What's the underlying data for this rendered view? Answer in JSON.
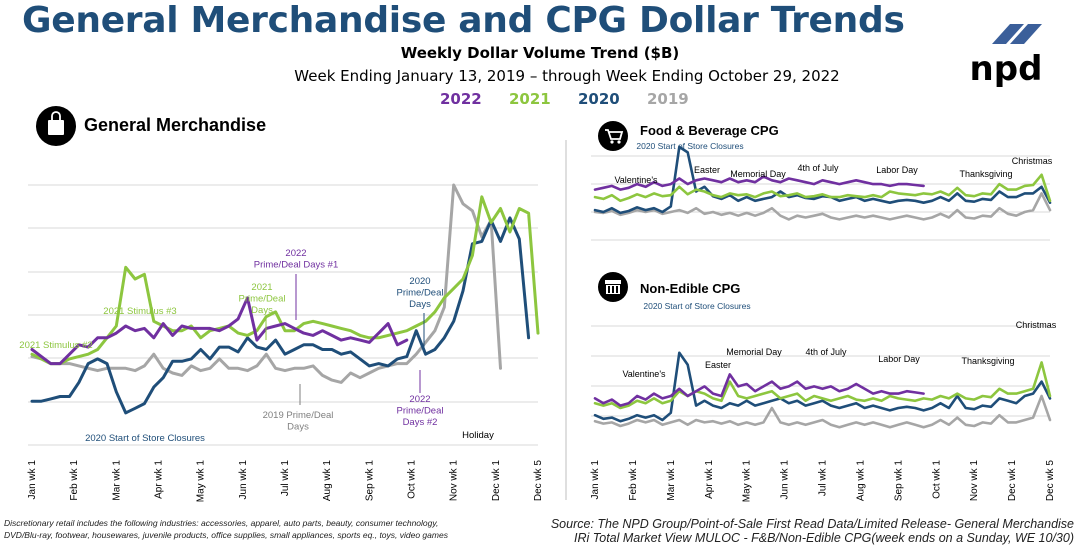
{
  "header": {
    "title": "General Merchandise and CPG Dollar Trends",
    "subtitle": "Weekly Dollar Volume Trend ($B)",
    "date_range": "Week Ending January 13, 2019 – through Week Ending October 29, 2022"
  },
  "logo": {
    "text": "npd"
  },
  "legend": [
    {
      "label": "2022",
      "color": "#7030a0"
    },
    {
      "label": "2021",
      "color": "#8dc63f"
    },
    {
      "label": "2020",
      "color": "#1f4e79"
    },
    {
      "label": "2019",
      "color": "#a6a6a6"
    }
  ],
  "colors": {
    "2022": "#7030a0",
    "2021": "#8dc63f",
    "2020": "#1f4e79",
    "2019": "#a6a6a6",
    "title": "#1f4e79"
  },
  "footnotes": {
    "left": [
      "Discretionary retail includes the following industries: accessories, apparel, auto parts, beauty, consumer technology,",
      "DVD/Blu-ray, footwear, housewares, juvenile products, office supplies, small appliances, sports eq., toys, video games"
    ],
    "right": [
      "Source: The NPD Group/Point-of-Sale First Read Data/Limited Release- General Merchandise",
      "IRi Total Market View MULOC - F&B/Non-Edible CPG(week ends on a Sunday, WE 10/30)"
    ]
  },
  "chart_data": [
    {
      "type": "line",
      "title": "General Merchandise",
      "icon": "shopping-bag-icon",
      "grid": true,
      "ylim": [
        0,
        100
      ],
      "x_ticks": [
        "Jan wk 1",
        "Feb wk 1",
        "Mar wk 1",
        "Apr wk 1",
        "May wk 1",
        "Jun wk 1",
        "Jul wk 1",
        "Aug wk 1",
        "Sep wk 1",
        "Oct wk 1",
        "Nov wk 1",
        "Dec wk 1",
        "Dec wk 5"
      ],
      "series": [
        {
          "name": "2022",
          "values": [
            30,
            27,
            24,
            24,
            28,
            32,
            31,
            35,
            35,
            37,
            40,
            38,
            39,
            35,
            41,
            36,
            40,
            39,
            39,
            39,
            38,
            40,
            43,
            52,
            34,
            39,
            40,
            41,
            39,
            37,
            36,
            38,
            36,
            34,
            35,
            34,
            33,
            37,
            41,
            32,
            34
          ]
        },
        {
          "name": "2021",
          "values": [
            28,
            26,
            24,
            24,
            26,
            27,
            28,
            30,
            35,
            40,
            65,
            60,
            62,
            42,
            40,
            38,
            38,
            40,
            35,
            38,
            39,
            40,
            37,
            36,
            38,
            44,
            46,
            38,
            38,
            41,
            42,
            41,
            40,
            39,
            38,
            36,
            35,
            35,
            36,
            37,
            38,
            40,
            42,
            46,
            52,
            56,
            60,
            70,
            95,
            84,
            90,
            80,
            90,
            88,
            37
          ]
        },
        {
          "name": "2020",
          "values": [
            8,
            8,
            9,
            10,
            10,
            16,
            24,
            26,
            24,
            12,
            3,
            5,
            7,
            14,
            18,
            25,
            25,
            26,
            30,
            26,
            31,
            31,
            29,
            35,
            31,
            30,
            34,
            28,
            30,
            32,
            32,
            30,
            30,
            28,
            29,
            26,
            23,
            24,
            23,
            26,
            27,
            38,
            28,
            30,
            35,
            42,
            55,
            75,
            76,
            85,
            76,
            86,
            77,
            35
          ]
        },
        {
          "name": "2019",
          "values": [
            27,
            26,
            24,
            24,
            24,
            23,
            22,
            21,
            22,
            22,
            22,
            21,
            23,
            28,
            22,
            20,
            19,
            23,
            21,
            22,
            26,
            22,
            22,
            21,
            23,
            28,
            22,
            21,
            22,
            22,
            23,
            19,
            17,
            16,
            20,
            18,
            20,
            22,
            23,
            24,
            24,
            28,
            33,
            38,
            48,
            100,
            92,
            89,
            78,
            85,
            22
          ]
        }
      ],
      "annotations": [
        "2021 Stimulus #2",
        "2021 Stimulus #3",
        "2021 Prime/Deal Days",
        "2022 Prime/Deal Days #1",
        "2020 Prime/Deal Days",
        "2019 Prime/Deal Days",
        "2022 Prime/Deal Days #2",
        "2020 Start of Store Closures",
        "Holiday"
      ]
    },
    {
      "type": "line",
      "title": "Food & Beverage CPG",
      "icon": "shopping-cart-icon",
      "grid": true,
      "ylim": [
        0,
        100
      ],
      "x_ticks": [
        "Jan wk 1",
        "Feb wk 1",
        "Mar wk 1",
        "Apr wk 1",
        "May wk 1",
        "Jun wk 1",
        "Jul wk 1",
        "Aug wk 1",
        "Sep wk 1",
        "Oct wk 1",
        "Nov wk 1",
        "Dec wk 1",
        "Dec wk 5"
      ],
      "series": [
        {
          "name": "2022",
          "values": [
            52,
            54,
            56,
            52,
            54,
            58,
            55,
            60,
            56,
            58,
            64,
            58,
            62,
            64,
            62,
            60,
            64,
            60,
            62,
            60,
            66,
            62,
            60,
            64,
            62,
            60,
            58,
            62,
            60,
            58,
            60,
            62,
            60,
            58,
            58,
            56,
            58,
            58,
            57,
            56
          ]
        },
        {
          "name": "2021",
          "values": [
            44,
            42,
            46,
            40,
            43,
            47,
            44,
            48,
            45,
            46,
            55,
            47,
            52,
            50,
            46,
            44,
            48,
            46,
            47,
            44,
            48,
            50,
            45,
            46,
            48,
            44,
            45,
            47,
            44,
            44,
            46,
            45,
            44,
            46,
            44,
            50,
            48,
            47,
            46,
            48,
            47,
            50,
            46,
            54,
            46,
            45,
            48,
            47,
            58,
            52,
            52,
            56,
            57,
            68,
            40
          ]
        },
        {
          "name": "2020",
          "values": [
            30,
            28,
            32,
            27,
            29,
            33,
            30,
            32,
            28,
            34,
            98,
            92,
            50,
            55,
            45,
            42,
            46,
            40,
            44,
            40,
            42,
            44,
            50,
            44,
            46,
            43,
            42,
            45,
            44,
            40,
            42,
            44,
            40,
            42,
            40,
            38,
            40,
            41,
            40,
            38,
            40,
            44,
            40,
            48,
            40,
            39,
            42,
            41,
            50,
            44,
            44,
            48,
            48,
            55,
            38
          ]
        },
        {
          "name": "2019",
          "values": [
            28,
            27,
            29,
            25,
            27,
            30,
            28,
            30,
            26,
            28,
            30,
            27,
            32,
            26,
            28,
            25,
            27,
            24,
            27,
            24,
            27,
            32,
            24,
            20,
            24,
            22,
            24,
            26,
            22,
            20,
            22,
            24,
            22,
            24,
            22,
            20,
            22,
            24,
            22,
            20,
            22,
            26,
            22,
            30,
            22,
            21,
            24,
            23,
            32,
            26,
            24,
            28,
            30,
            48,
            30
          ]
        }
      ],
      "annotations": [
        "2020 Start of Store Closures",
        "Valentine's",
        "Easter",
        "Memorial Day",
        "4th of July",
        "Labor Day",
        "Thanksgiving",
        "Christmas"
      ]
    },
    {
      "type": "line",
      "title": "Non-Edible CPG",
      "icon": "store-icon",
      "grid": true,
      "ylim": [
        0,
        100
      ],
      "x_ticks": [
        "Jan wk 1",
        "Feb wk 1",
        "Mar wk 1",
        "Apr wk 1",
        "May wk 1",
        "Jun wk 1",
        "Jul wk 1",
        "Aug wk 1",
        "Sep wk 1",
        "Oct wk 1",
        "Nov wk 1",
        "Dec wk 1",
        "Dec wk 5"
      ],
      "series": [
        {
          "name": "2022",
          "values": [
            28,
            24,
            27,
            22,
            24,
            30,
            27,
            32,
            28,
            30,
            36,
            30,
            34,
            38,
            32,
            30,
            48,
            38,
            40,
            34,
            38,
            42,
            36,
            38,
            42,
            36,
            38,
            36,
            38,
            34,
            36,
            40,
            36,
            32,
            34,
            32,
            32,
            34,
            33,
            32
          ]
        },
        {
          "name": "2021",
          "values": [
            24,
            22,
            24,
            20,
            22,
            26,
            24,
            28,
            24,
            26,
            34,
            30,
            34,
            32,
            28,
            26,
            42,
            30,
            28,
            30,
            32,
            34,
            28,
            30,
            32,
            26,
            30,
            28,
            26,
            28,
            30,
            27,
            26,
            28,
            26,
            30,
            28,
            27,
            26,
            28,
            27,
            30,
            28,
            32,
            28,
            27,
            30,
            29,
            36,
            32,
            32,
            34,
            36,
            58,
            30
          ]
        },
        {
          "name": "2020",
          "values": [
            14,
            11,
            12,
            9,
            11,
            14,
            12,
            14,
            10,
            16,
            66,
            56,
            22,
            26,
            22,
            20,
            24,
            22,
            26,
            22,
            24,
            26,
            28,
            24,
            26,
            22,
            24,
            26,
            22,
            20,
            22,
            24,
            20,
            22,
            20,
            18,
            20,
            21,
            20,
            18,
            20,
            24,
            20,
            30,
            20,
            19,
            22,
            21,
            28,
            26,
            24,
            30,
            32,
            42,
            28
          ]
        },
        {
          "name": "2019",
          "values": [
            9,
            7,
            8,
            5,
            7,
            10,
            8,
            10,
            6,
            8,
            10,
            6,
            10,
            8,
            9,
            7,
            9,
            6,
            8,
            6,
            8,
            20,
            8,
            6,
            8,
            6,
            8,
            10,
            6,
            4,
            6,
            8,
            6,
            8,
            6,
            4,
            6,
            8,
            6,
            4,
            6,
            10,
            6,
            12,
            6,
            5,
            8,
            7,
            14,
            8,
            8,
            10,
            12,
            30,
            10
          ]
        }
      ],
      "annotations": [
        "2020 Start of Store Closures",
        "Valentine's",
        "Easter",
        "Memorial Day",
        "4th of July",
        "Labor Day",
        "Thanksgiving",
        "Christmas"
      ]
    }
  ]
}
